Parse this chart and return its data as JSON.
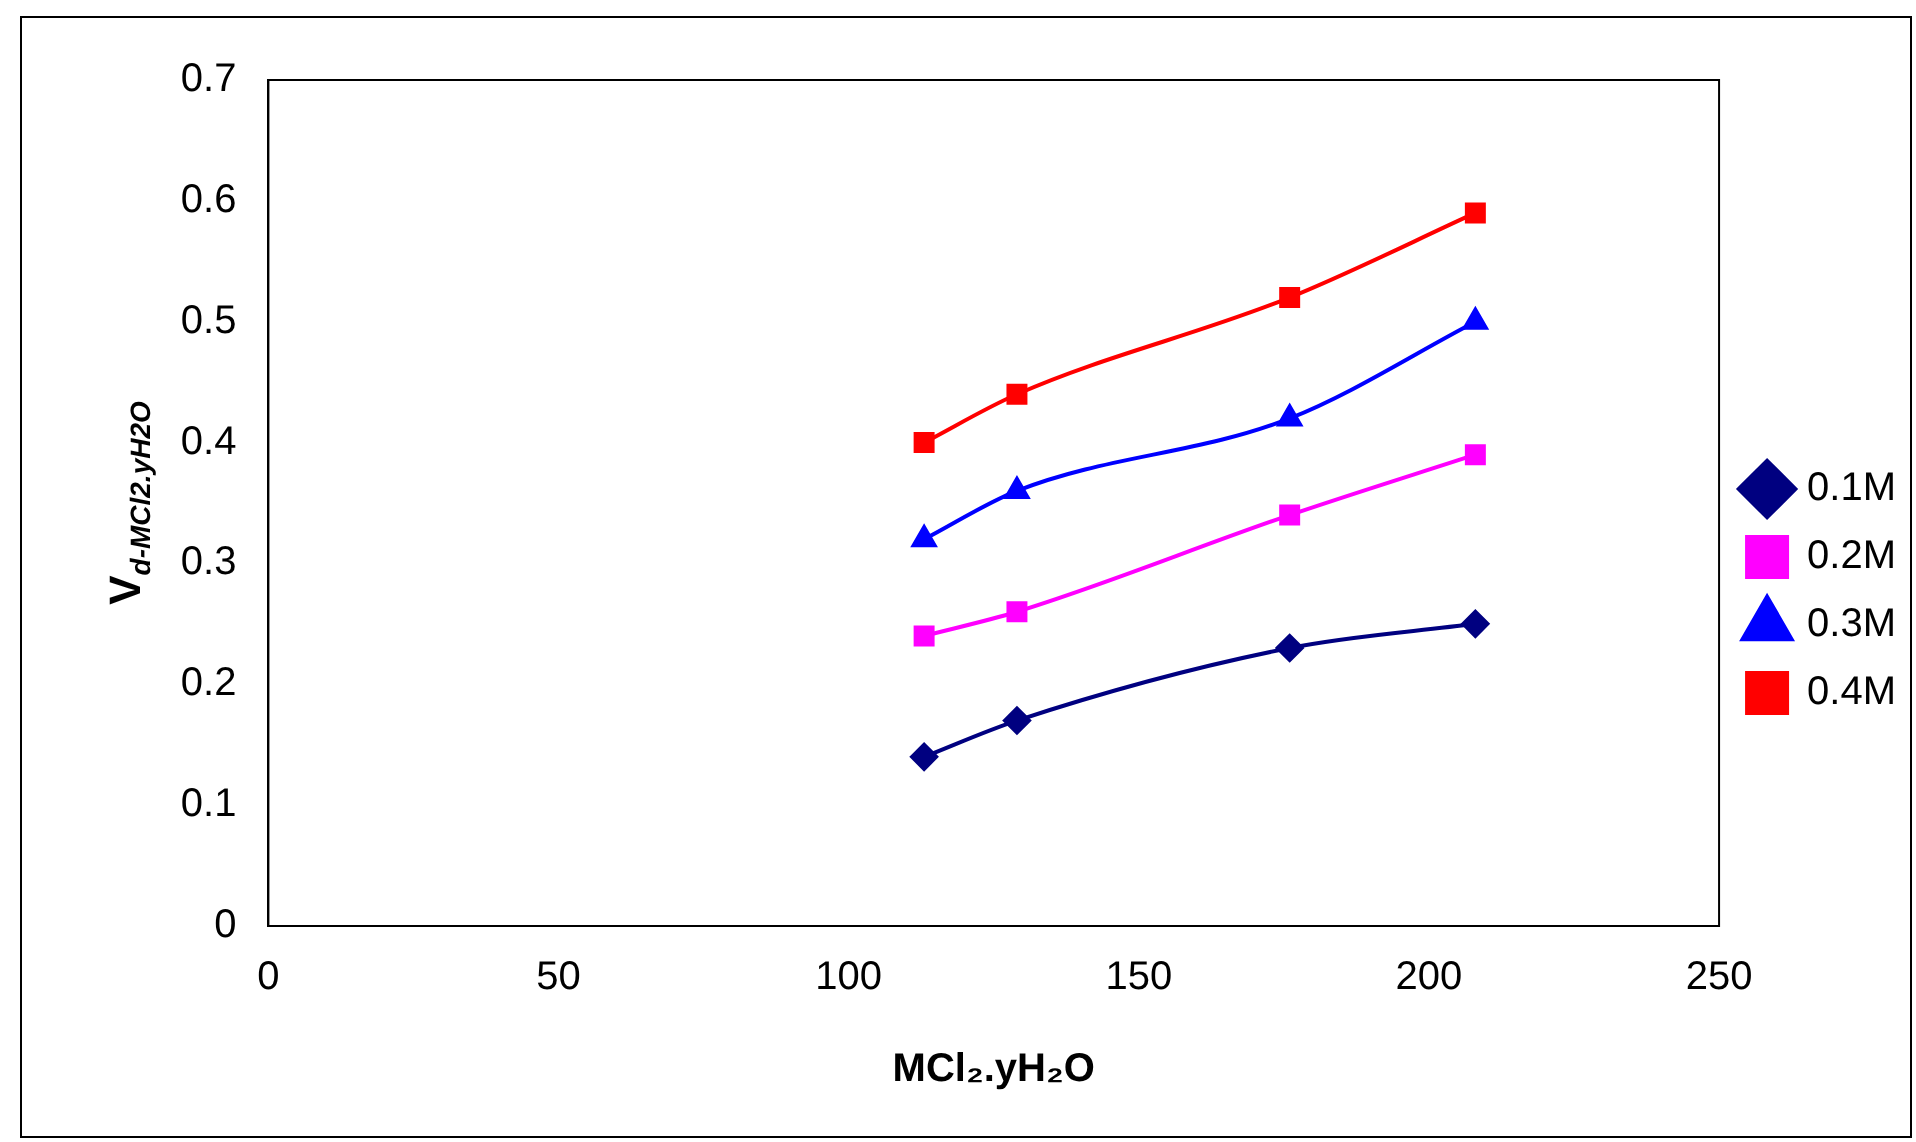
{
  "chart_data": {
    "type": "line",
    "xlabel": "MCl₂.yH₂O",
    "ylabel": "V$_{d-MCl2.yH2O}$",
    "x": [
      113,
      129,
      176,
      208
    ],
    "series": [
      {
        "name": "0.1M",
        "color": "#000080",
        "marker": "diamond",
        "values": [
          0.14,
          0.17,
          0.23,
          0.25
        ]
      },
      {
        "name": "0.2M",
        "color": "#ff00ff",
        "marker": "square",
        "values": [
          0.24,
          0.26,
          0.34,
          0.39
        ]
      },
      {
        "name": "0.3M",
        "color": "#0000ff",
        "marker": "triangle",
        "values": [
          0.32,
          0.36,
          0.42,
          0.5
        ]
      },
      {
        "name": "0.4M",
        "color": "#ff0000",
        "marker": "square",
        "values": [
          0.4,
          0.44,
          0.52,
          0.59
        ]
      }
    ],
    "xlim": [
      0,
      250
    ],
    "xticks": [
      0,
      50,
      100,
      150,
      200,
      250
    ],
    "ylim": [
      0,
      0.7
    ],
    "yticks": [
      0,
      0.1,
      0.2,
      0.3,
      0.4,
      0.5,
      0.6,
      0.7
    ],
    "grid": false,
    "legend": "right",
    "line_style": "solid"
  }
}
